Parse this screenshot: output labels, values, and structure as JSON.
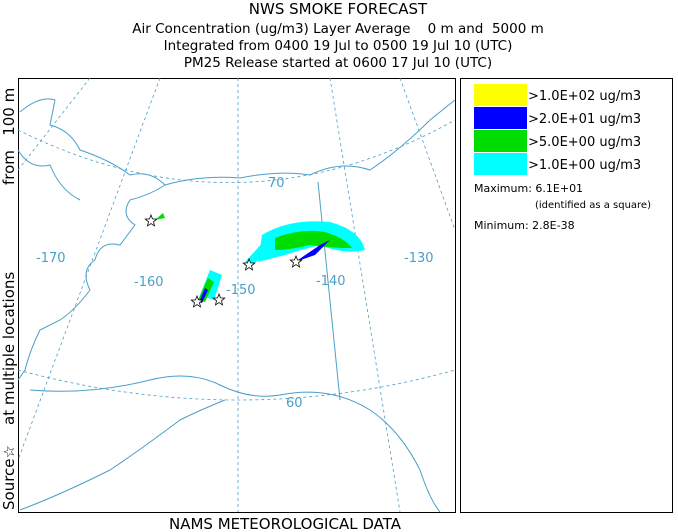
{
  "header": {
    "title": "NWS SMOKE FORECAST",
    "lines": [
      "Air Concentration (ug/m3) Layer Average    0 m and  5000 m",
      "Integrated from 0400 19 Jul to 0500 19 Jul 10 (UTC)",
      "PM25 Release started at 0600 17 Jul 10 (UTC)"
    ]
  },
  "side_label": [
    "Source☆",
    "at multiple locations",
    "from   100 m"
  ],
  "footer": "NAMS METEOROLOGICAL DATA",
  "map_labels": [
    "-170",
    "-160",
    "-150",
    "-140",
    "-130",
    "70",
    "60"
  ],
  "legend": {
    "entries": [
      {
        "label": ">1.0E+02 ug/m3",
        "color": "#ffff00"
      },
      {
        "label": ">2.0E+01 ug/m3",
        "color": "#0000ff"
      },
      {
        "label": ">5.0E+00 ug/m3",
        "color": "#00dd00"
      },
      {
        "label": ">1.0E+00 ug/m3",
        "color": "#00ffff"
      }
    ],
    "maximum": "Maximum: 6.1E+01",
    "maximum_note": "(identified as a square)",
    "minimum": "Minimum: 2.8E-38"
  }
}
